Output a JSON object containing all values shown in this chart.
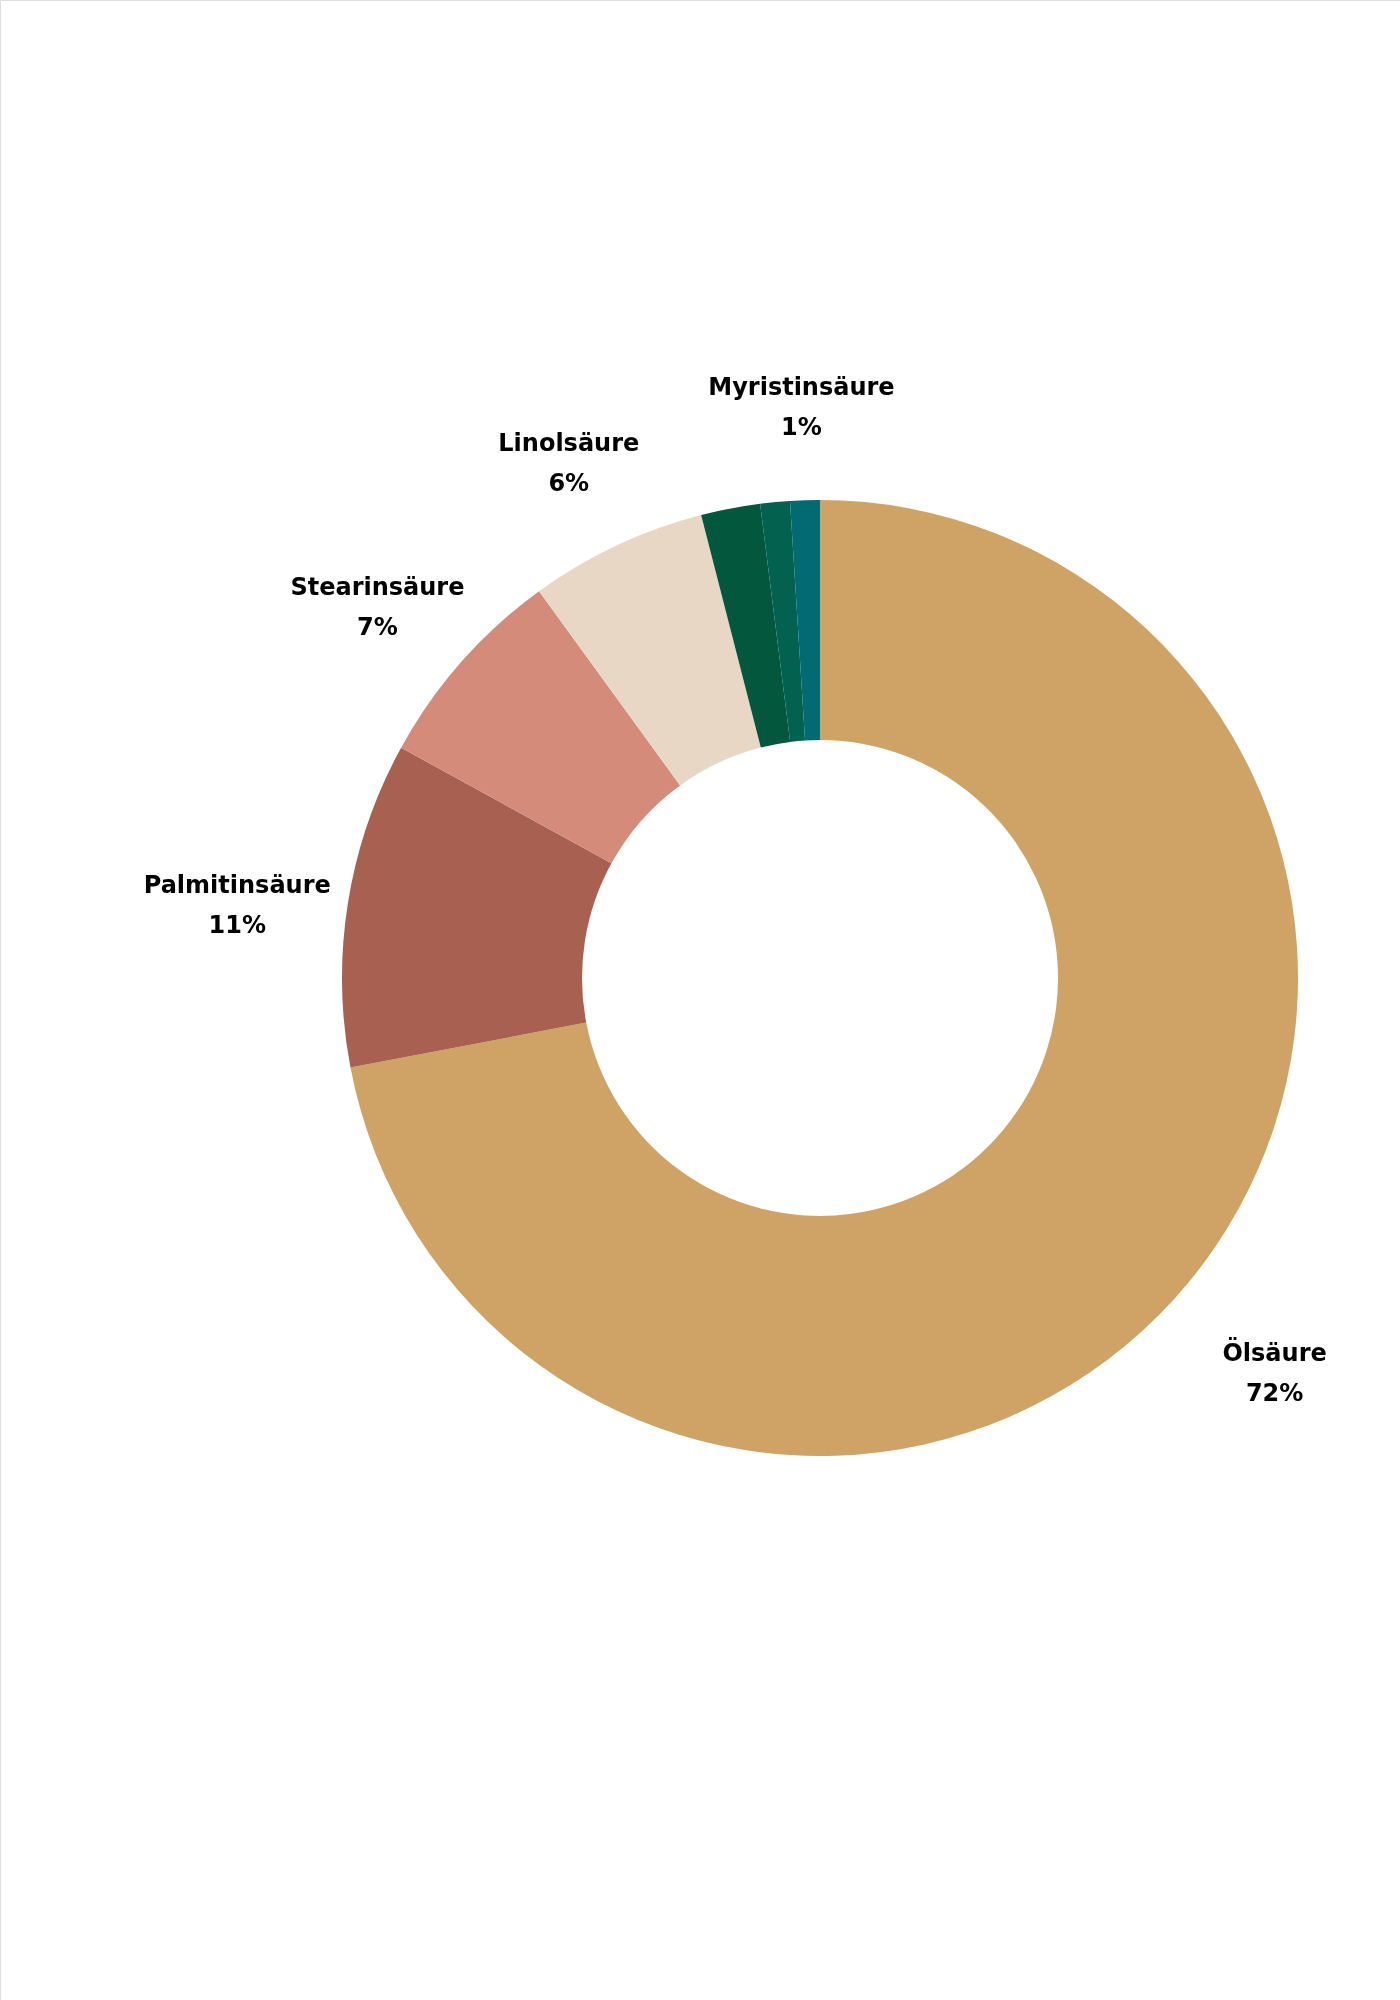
{
  "chart_data": {
    "type": "donut",
    "categories": [
      "Ölsäure",
      "Palmitinsäure",
      "Stearinsäure",
      "Linolsäure",
      null,
      null,
      "Myristinsäure"
    ],
    "values": [
      72,
      11,
      7,
      6,
      2,
      1,
      1
    ],
    "colors": [
      "#cfa366",
      "#a86050",
      "#d48b79",
      "#e8d7c5",
      "#02573d",
      "#03614f",
      "#026a72"
    ],
    "value_labels": [
      "72%",
      "11%",
      "7%",
      "6%",
      null,
      null,
      "1%"
    ]
  }
}
